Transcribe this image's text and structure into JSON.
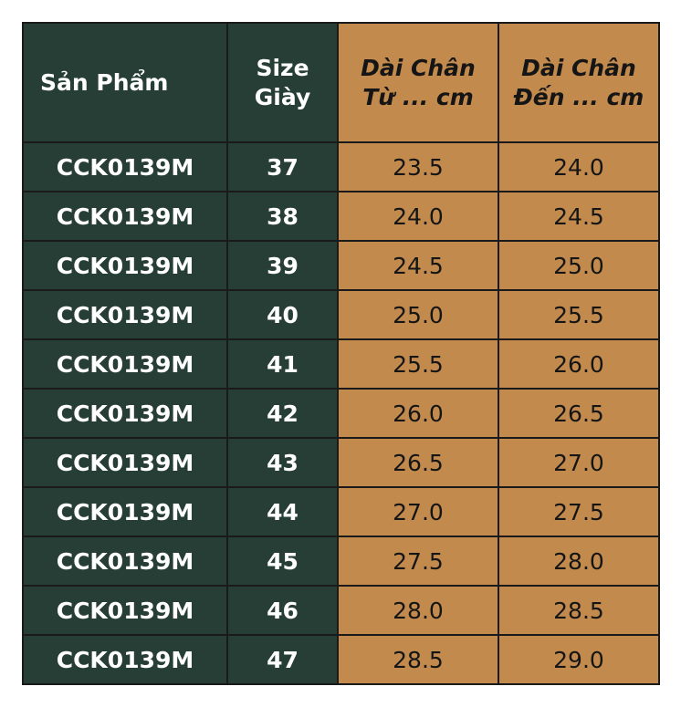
{
  "table": {
    "headers": {
      "product": "Sản Phẩm",
      "size_line1": "Size",
      "size_line2": "Giày",
      "from_line1": "Dài Chân",
      "from_line2": "Từ ... cm",
      "to_line1": "Dài Chân",
      "to_line2": "Đến ... cm"
    },
    "rows": [
      {
        "product": "CCK0139M",
        "size": "37",
        "from": "23.5",
        "to": "24.0"
      },
      {
        "product": "CCK0139M",
        "size": "38",
        "from": "24.0",
        "to": "24.5"
      },
      {
        "product": "CCK0139M",
        "size": "39",
        "from": "24.5",
        "to": "25.0"
      },
      {
        "product": "CCK0139M",
        "size": "40",
        "from": "25.0",
        "to": "25.5"
      },
      {
        "product": "CCK0139M",
        "size": "41",
        "from": "25.5",
        "to": "26.0"
      },
      {
        "product": "CCK0139M",
        "size": "42",
        "from": "26.0",
        "to": "26.5"
      },
      {
        "product": "CCK0139M",
        "size": "43",
        "from": "26.5",
        "to": "27.0"
      },
      {
        "product": "CCK0139M",
        "size": "44",
        "from": "27.0",
        "to": "27.5"
      },
      {
        "product": "CCK0139M",
        "size": "45",
        "from": "27.5",
        "to": "28.0"
      },
      {
        "product": "CCK0139M",
        "size": "46",
        "from": "28.0",
        "to": "28.5"
      },
      {
        "product": "CCK0139M",
        "size": "47",
        "from": "28.5",
        "to": "29.0"
      }
    ]
  },
  "colors": {
    "dark_green": "#263e36",
    "tan": "#c28b4d",
    "border": "#1a1a1a"
  }
}
